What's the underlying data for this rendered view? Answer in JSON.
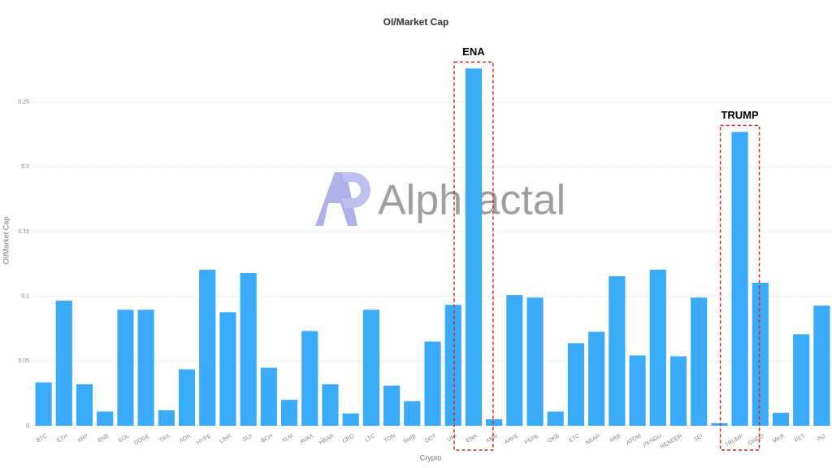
{
  "chart_data": {
    "type": "bar",
    "title": "OI/Market Cap",
    "x_label": "Crypto",
    "y_label": "OI/Market Cap",
    "watermark": "Alphractal",
    "categories": [
      "BTC",
      "ETH",
      "XRP",
      "BNB",
      "SOL",
      "DOGE",
      "TRX",
      "ADA",
      "HYPE",
      "LINK",
      "SUI",
      "BCH",
      "XLM",
      "AVAX",
      "HBAR",
      "CRO",
      "LTC",
      "TON",
      "SHIB",
      "DOT",
      "UNI",
      "ENA",
      "XMR",
      "AAVE",
      "PEPE",
      "OKB",
      "ETC",
      "NEAR",
      "ARB",
      "ATOM",
      "PENGU",
      "RENDER",
      "SEI",
      null,
      "TRUMP",
      "ONDO",
      "MKR",
      "FET",
      "INJ"
    ],
    "values": [
      0.0335,
      0.0966,
      0.032,
      0.011,
      0.0896,
      0.0896,
      0.012,
      0.0436,
      0.1206,
      0.0877,
      0.118,
      0.0448,
      0.02,
      0.0732,
      0.032,
      0.0095,
      0.0896,
      0.031,
      0.019,
      0.065,
      0.0934,
      0.276,
      0.005,
      0.101,
      0.099,
      0.011,
      0.0638,
      0.0726,
      0.1155,
      0.0543,
      0.1206,
      0.0537,
      0.099,
      0.002,
      0.227,
      0.1105,
      0.01,
      0.0707,
      0.0928
    ],
    "color": "#3aabf8",
    "ylim": [
      0,
      0.285
    ],
    "yticks": [
      0,
      0.05,
      0.1,
      0.15,
      0.2,
      0.25
    ],
    "grid": true,
    "annotations": [
      {
        "text": "ENA",
        "category": 21
      },
      {
        "text": "TRUMP",
        "category": 34
      }
    ]
  }
}
